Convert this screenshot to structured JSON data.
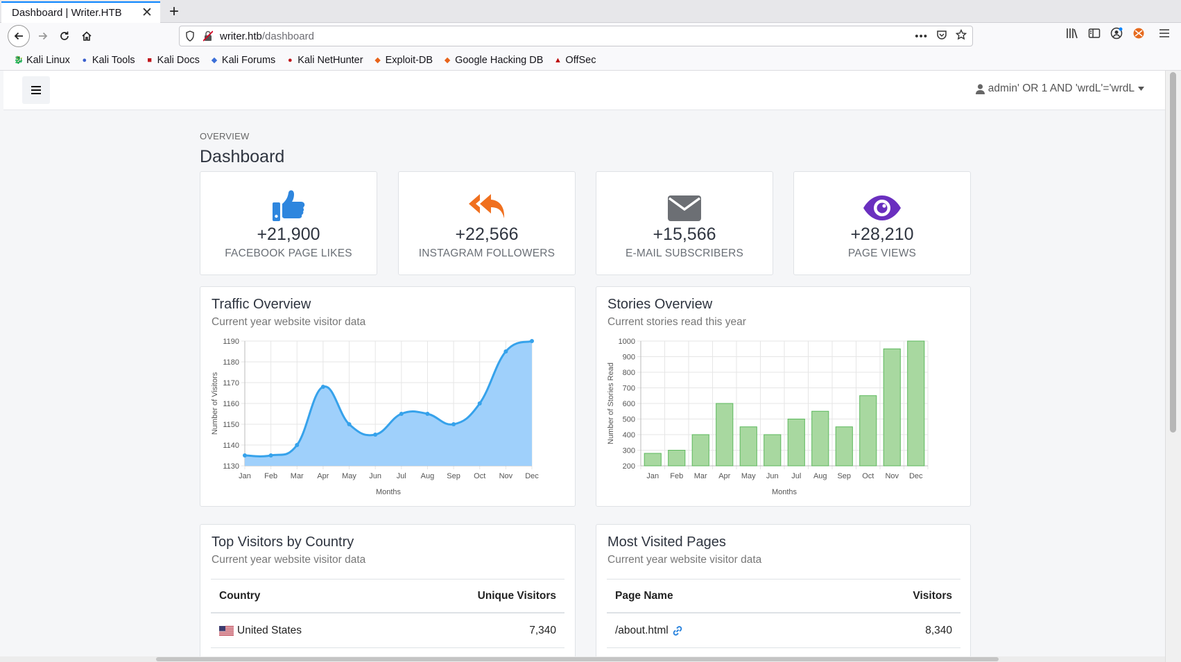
{
  "browser": {
    "tab_title": "Dashboard | Writer.HTB",
    "url_host": "writer.htb",
    "url_path": "/dashboard",
    "bookmarks": [
      {
        "label": "Kali Linux",
        "icon": "kali-dragon-icon"
      },
      {
        "label": "Kali Tools",
        "icon": "kali-tools-icon"
      },
      {
        "label": "Kali Docs",
        "icon": "kali-docs-icon"
      },
      {
        "label": "Kali Forums",
        "icon": "kali-forums-icon"
      },
      {
        "label": "Kali NetHunter",
        "icon": "nethunter-icon"
      },
      {
        "label": "Exploit-DB",
        "icon": "exploit-db-icon"
      },
      {
        "label": "Google Hacking DB",
        "icon": "ghdb-icon"
      },
      {
        "label": "OffSec",
        "icon": "offsec-icon"
      }
    ]
  },
  "topnav": {
    "user_label": "admin' OR 1 AND 'wrdL'='wrdL"
  },
  "header": {
    "overline": "OVERVIEW",
    "title": "Dashboard"
  },
  "stats": [
    {
      "value": "+21,900",
      "label": "FACEBOOK PAGE LIKES",
      "icon": "thumbs-up-icon",
      "color": "#2e86de"
    },
    {
      "value": "+22,566",
      "label": "INSTAGRAM FOLLOWERS",
      "icon": "reply-all-icon",
      "color": "#f0701f"
    },
    {
      "value": "+15,566",
      "label": "E-MAIL SUBSCRIBERS",
      "icon": "envelope-icon",
      "color": "#6c6f74"
    },
    {
      "value": "+28,210",
      "label": "PAGE VIEWS",
      "icon": "eye-icon",
      "color": "#6a2fbf"
    }
  ],
  "traffic": {
    "title": "Traffic Overview",
    "subtitle": "Current year website visitor data"
  },
  "stories": {
    "title": "Stories Overview",
    "subtitle": "Current stories read this year"
  },
  "chart_data": [
    {
      "type": "area",
      "title": "Traffic Overview",
      "subtitle": "Current year website visitor data",
      "xlabel": "Months",
      "ylabel": "Number of Visitors",
      "categories": [
        "Jan",
        "Feb",
        "Mar",
        "Apr",
        "May",
        "Jun",
        "Jul",
        "Aug",
        "Sep",
        "Oct",
        "Nov",
        "Dec"
      ],
      "values": [
        1135,
        1135,
        1140,
        1168,
        1150,
        1145,
        1155,
        1155,
        1150,
        1160,
        1185,
        1190
      ],
      "ylim": [
        1130,
        1190
      ],
      "yticks": [
        1130,
        1140,
        1150,
        1160,
        1170,
        1180,
        1190
      ],
      "grid": true,
      "color": "#36a2eb",
      "fill": "#9fd0fb"
    },
    {
      "type": "bar",
      "title": "Stories Overview",
      "subtitle": "Current stories read this year",
      "xlabel": "Months",
      "ylabel": "Number of Stories Read",
      "categories": [
        "Jan",
        "Feb",
        "Mar",
        "Apr",
        "May",
        "Jun",
        "Jul",
        "Aug",
        "Sep",
        "Oct",
        "Nov",
        "Dec"
      ],
      "values": [
        280,
        300,
        400,
        600,
        450,
        400,
        500,
        550,
        450,
        650,
        950,
        1000
      ],
      "ylim": [
        200,
        1000
      ],
      "yticks": [
        200,
        300,
        400,
        500,
        600,
        700,
        800,
        900,
        1000
      ],
      "grid": true,
      "color": "#5cb85c",
      "fill": "#a8d8a0"
    }
  ],
  "countries": {
    "title": "Top Visitors by Country",
    "subtitle": "Current year website visitor data",
    "col_left": "Country",
    "col_right": "Unique Visitors",
    "rows": [
      {
        "name": "United States",
        "value": "7,340",
        "icon": "us-flag-icon"
      }
    ]
  },
  "pages": {
    "title": "Most Visited Pages",
    "subtitle": "Current year website visitor data",
    "col_left": "Page Name",
    "col_right": "Visitors",
    "rows": [
      {
        "name": "/about.html",
        "value": "8,340",
        "icon": "link-icon"
      }
    ]
  }
}
